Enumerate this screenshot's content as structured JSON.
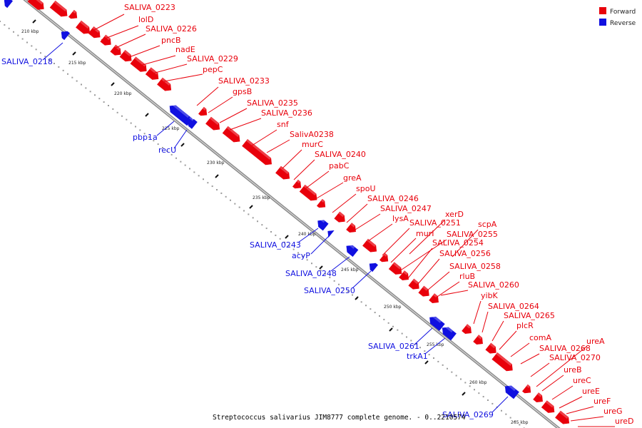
{
  "legend": {
    "forward_label": "Forward",
    "reverse_label": "Reverse",
    "forward_color": "#e8000b",
    "reverse_color": "#1010e0"
  },
  "caption": "Streptococcus salivarius JIM8777 complete genome. - 0..2210574",
  "axis_ticks": [
    "210 kbp",
    "215 kbp",
    "220 kbp",
    "225 kbp",
    "230 kbp",
    "235 kbp",
    "240 kbp",
    "245 kbp",
    "250 kbp",
    "255 kbp",
    "260 kbp",
    "265 kbp"
  ],
  "forward_genes": [
    "SALIVA_0223",
    "lolD",
    "SALIVA_0226",
    "pncB",
    "nadE",
    "SALIVA_0229",
    "pepC",
    "SALIVA_0233",
    "gpsB",
    "SALIVA_0235",
    "SALIVA_0236",
    "snf",
    "SalivA0238",
    "murC",
    "SALIVA_0240",
    "pabC",
    "greA",
    "spoU",
    "SALIVA_0246",
    "SALIVA_0247",
    "lysA",
    "xerD",
    "SALIVA_0251",
    "murI",
    "scpA",
    "SALIVA_0255",
    "SALIVA_0254",
    "SALIVA_0256",
    "SALIVA_0258",
    "rluB",
    "SALIVA_0260",
    "yibK",
    "SALIVA_0264",
    "SALIVA_0265",
    "plcR",
    "comA",
    "ureA",
    "SALIVA_0268",
    "SALIVA_0270",
    "ureB",
    "ureC",
    "ureE",
    "ureF",
    "ureG",
    "ureD"
  ],
  "reverse_genes": [
    "SALIVA_0218",
    "pbp1a",
    "recU",
    "SALIVA_0243",
    "acyP",
    "SALIVA_0248",
    "SALIVA_0250",
    "SALIVA_0261",
    "trkA1",
    "SALIVA_0269"
  ]
}
